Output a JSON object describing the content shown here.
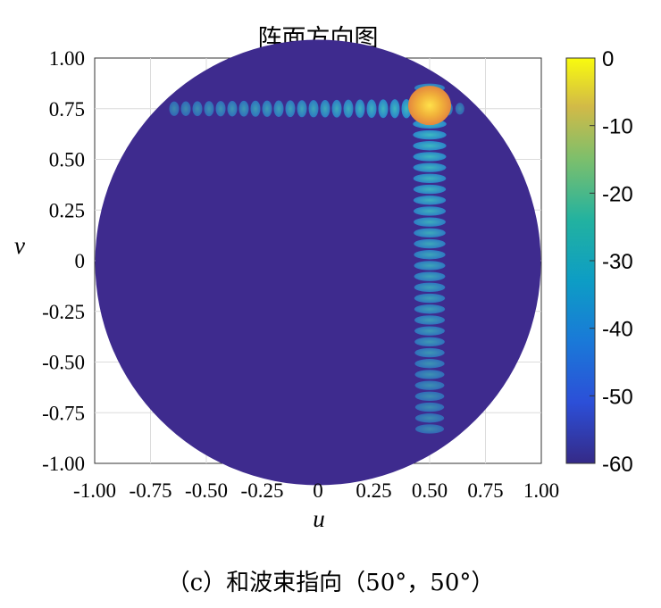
{
  "chart_data": {
    "type": "heatmap",
    "title": "阵面方向图",
    "xlabel": "u",
    "ylabel": "v",
    "xlim": [
      -1.0,
      1.0
    ],
    "ylim": [
      -1.0,
      1.0
    ],
    "x_ticks": [
      "-1.00",
      "-0.75",
      "-0.50",
      "-0.25",
      "0",
      "0.25",
      "0.50",
      "0.75",
      "1.00"
    ],
    "y_ticks": [
      "1.00",
      "0.75",
      "0.50",
      "0.25",
      "0",
      "-0.25",
      "-0.50",
      "-0.75",
      "-1.00"
    ],
    "colorbar": {
      "range": [
        -60,
        0
      ],
      "ticks": [
        "0",
        "-10",
        "-20",
        "-30",
        "-40",
        "-50",
        "-60"
      ],
      "colormap": "parula"
    },
    "grid": true,
    "region": "unit circle (u² + v² ≤ 1)",
    "background_level_db": -60,
    "main_beam": {
      "u": 0.5,
      "v": 0.766,
      "level_db": 0
    },
    "sidelobe_cuts": [
      {
        "orientation": "horizontal",
        "v": 0.75,
        "u_range": [
          -0.67,
          0.67
        ],
        "level_db": -42
      },
      {
        "orientation": "vertical",
        "u": 0.5,
        "v_range": [
          -0.85,
          0.85
        ],
        "level_db": -40
      }
    ]
  },
  "caption": "（c）和波束指向（50°，50°）",
  "colors": {
    "background": "#3e2b8e",
    "sidelobe": "#2fa7c7",
    "beam_core": "#f5c83a",
    "beam_edge": "#e48a3e"
  }
}
